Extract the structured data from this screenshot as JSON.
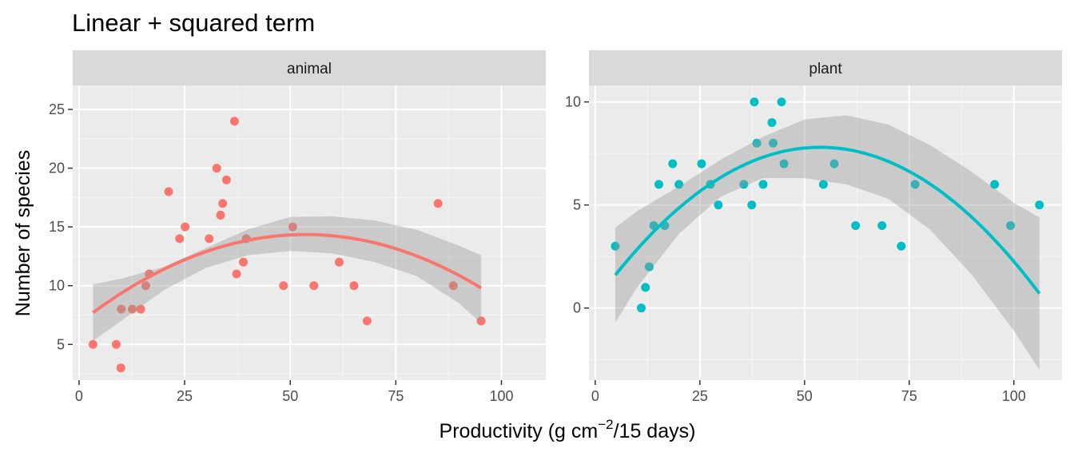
{
  "chart_data": {
    "type": "scatter",
    "title": "Linear + squared term",
    "xlabel": {
      "main": "Productivity (g cm",
      "superscript": "−2",
      "suffix": "/15 days)"
    },
    "ylabel": "Number of species",
    "facets": [
      {
        "name": "animal",
        "color": "#F8766D",
        "xlim": [
          -1.5,
          110.5
        ],
        "ylim": [
          1.96,
          27.04
        ],
        "x_ticks": [
          0,
          25,
          50,
          75,
          100
        ],
        "y_ticks": [
          5,
          10,
          15,
          20,
          25
        ],
        "points": [
          {
            "x": 3.3,
            "y": 5
          },
          {
            "x": 8.8,
            "y": 5
          },
          {
            "x": 9.9,
            "y": 3
          },
          {
            "x": 10.0,
            "y": 8
          },
          {
            "x": 12.6,
            "y": 8
          },
          {
            "x": 14.6,
            "y": 8
          },
          {
            "x": 15.8,
            "y": 10
          },
          {
            "x": 16.6,
            "y": 11
          },
          {
            "x": 21.2,
            "y": 18
          },
          {
            "x": 23.8,
            "y": 14
          },
          {
            "x": 25.1,
            "y": 15
          },
          {
            "x": 30.8,
            "y": 14
          },
          {
            "x": 32.6,
            "y": 20
          },
          {
            "x": 33.5,
            "y": 16
          },
          {
            "x": 34.0,
            "y": 17
          },
          {
            "x": 34.9,
            "y": 19
          },
          {
            "x": 36.8,
            "y": 24
          },
          {
            "x": 37.3,
            "y": 11
          },
          {
            "x": 38.9,
            "y": 12
          },
          {
            "x": 39.6,
            "y": 14
          },
          {
            "x": 48.4,
            "y": 10
          },
          {
            "x": 50.6,
            "y": 15
          },
          {
            "x": 55.6,
            "y": 10
          },
          {
            "x": 61.6,
            "y": 12
          },
          {
            "x": 65.1,
            "y": 10
          },
          {
            "x": 68.2,
            "y": 7
          },
          {
            "x": 85.0,
            "y": 17
          },
          {
            "x": 88.6,
            "y": 10
          },
          {
            "x": 95.2,
            "y": 7
          }
        ],
        "fit": {
          "x_range": [
            3.3,
            95.2
          ],
          "samples": [
            [
              3.3,
              7.7
            ],
            [
              53.0,
              14.35
            ],
            [
              95.2,
              9.8
            ]
          ]
        },
        "ribbon": {
          "x": [
            3.3,
            10,
            20,
            30,
            40,
            50,
            60,
            70,
            80,
            90,
            95.2
          ],
          "lower": [
            5.3,
            7.0,
            9.6,
            11.5,
            12.6,
            12.95,
            12.75,
            12.0,
            10.8,
            8.5,
            6.8
          ],
          "upper": [
            10.1,
            10.6,
            11.6,
            13.2,
            14.8,
            15.85,
            15.9,
            15.55,
            14.75,
            13.4,
            12.6
          ]
        }
      },
      {
        "name": "plant",
        "color": "#00BFC4",
        "xlim": [
          -1.5,
          111.5
        ],
        "ylim": [
          -3.5,
          10.8
        ],
        "x_ticks": [
          0,
          25,
          50,
          75,
          100
        ],
        "y_ticks": [
          0,
          5,
          10
        ],
        "points": [
          {
            "x": 4.8,
            "y": 3
          },
          {
            "x": 11.0,
            "y": 0
          },
          {
            "x": 12.0,
            "y": 1
          },
          {
            "x": 12.9,
            "y": 2
          },
          {
            "x": 14.0,
            "y": 4
          },
          {
            "x": 15.2,
            "y": 6
          },
          {
            "x": 16.6,
            "y": 4
          },
          {
            "x": 18.5,
            "y": 7
          },
          {
            "x": 20.0,
            "y": 6
          },
          {
            "x": 25.4,
            "y": 7
          },
          {
            "x": 27.5,
            "y": 6
          },
          {
            "x": 29.4,
            "y": 5
          },
          {
            "x": 35.5,
            "y": 6
          },
          {
            "x": 37.4,
            "y": 5
          },
          {
            "x": 38.0,
            "y": 10
          },
          {
            "x": 38.6,
            "y": 8
          },
          {
            "x": 40.1,
            "y": 6
          },
          {
            "x": 42.2,
            "y": 9
          },
          {
            "x": 42.5,
            "y": 8
          },
          {
            "x": 44.5,
            "y": 10
          },
          {
            "x": 45.1,
            "y": 7
          },
          {
            "x": 54.5,
            "y": 6
          },
          {
            "x": 57.1,
            "y": 7
          },
          {
            "x": 62.2,
            "y": 4
          },
          {
            "x": 68.5,
            "y": 4
          },
          {
            "x": 73.1,
            "y": 3
          },
          {
            "x": 76.4,
            "y": 6
          },
          {
            "x": 95.4,
            "y": 6
          },
          {
            "x": 99.2,
            "y": 4
          },
          {
            "x": 106.1,
            "y": 5
          }
        ],
        "fit": {
          "x_range": [
            4.8,
            106.1
          ],
          "samples": [
            [
              4.8,
              1.6
            ],
            [
              53.5,
              7.8
            ],
            [
              106.1,
              0.7
            ]
          ]
        },
        "ribbon": {
          "x": [
            4.8,
            10,
            20,
            30,
            40,
            50,
            60,
            70,
            80,
            90,
            100,
            106.1
          ],
          "lower": [
            -0.7,
            1.0,
            3.6,
            5.4,
            6.3,
            6.3,
            6.0,
            5.3,
            3.8,
            1.6,
            -1.1,
            -3.0
          ],
          "upper": [
            3.9,
            4.7,
            5.9,
            7.2,
            8.3,
            9.15,
            9.35,
            8.9,
            7.9,
            6.6,
            5.1,
            4.4
          ]
        }
      }
    ],
    "grid": true,
    "legend": "none"
  }
}
